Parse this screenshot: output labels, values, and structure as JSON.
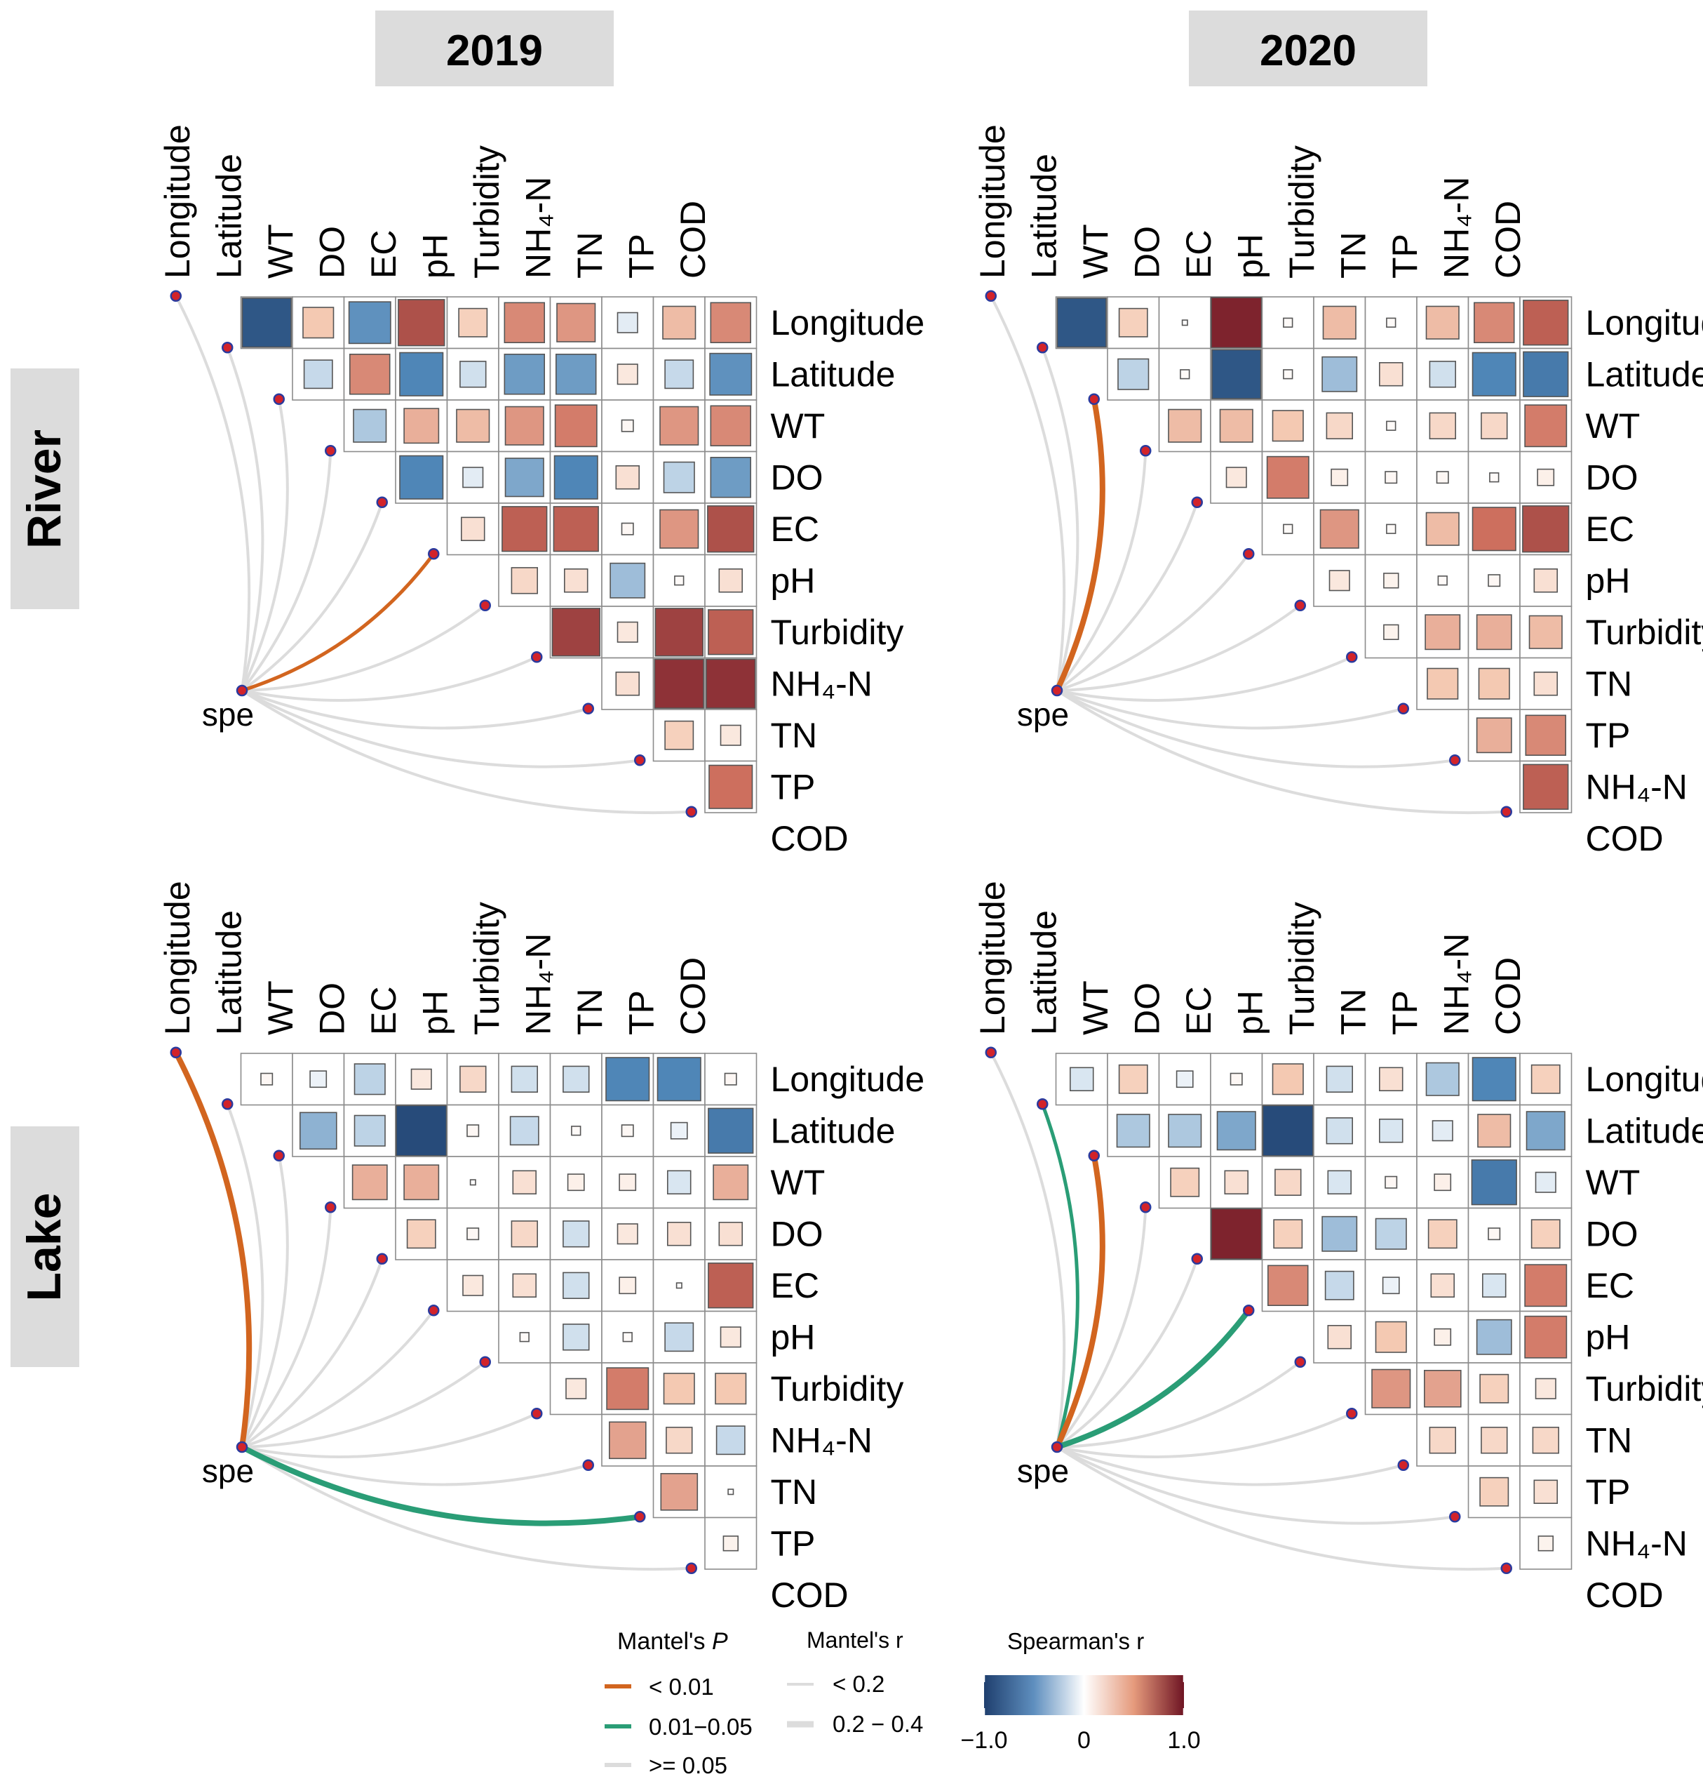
{
  "colors": {
    "neg": "#1f3f6e",
    "pos": "#6e1423",
    "mantel_p_lt001": "#d2651f",
    "mantel_p_001_005": "#2a9d76",
    "mantel_p_ge005": "#dcdcdc",
    "header_bg": "#dcdcdc"
  },
  "chart_data": [
    {
      "type": "heatmap",
      "panel": "River 2019",
      "year": "2019",
      "habitat": "River",
      "variables": [
        "Longitude",
        "Latitude",
        "WT",
        "DO",
        "EC",
        "pH",
        "Turbidity",
        "NH₄-N",
        "TN",
        "TP",
        "COD"
      ],
      "spe_label": "spe",
      "correlations": [
        [
          -0.9,
          0.35,
          -0.65,
          0.8,
          0.3,
          0.6,
          0.55,
          -0.15,
          0.4,
          0.6
        ],
        [
          -0.3,
          0.6,
          -0.7,
          -0.25,
          -0.6,
          -0.6,
          0.15,
          -0.3,
          -0.65
        ],
        [
          -0.4,
          0.45,
          0.4,
          0.55,
          0.65,
          0.05,
          0.55,
          0.6
        ],
        [
          -0.7,
          -0.15,
          -0.55,
          -0.7,
          0.2,
          -0.35,
          -0.6
        ],
        [
          0.2,
          0.75,
          0.75,
          0.05,
          0.55,
          0.8
        ],
        [
          0.25,
          0.2,
          -0.45,
          0.03,
          0.2
        ],
        [
          0.85,
          0.15,
          0.85,
          0.75
        ],
        [
          0.2,
          0.9,
          0.9
        ],
        [
          0.3,
          0.15
        ],
        [
          0.7
        ]
      ],
      "mantel": [
        {
          "var": "Longitude",
          "p": ">= 0.05",
          "r": "< 0.2"
        },
        {
          "var": "Latitude",
          "p": ">= 0.05",
          "r": "< 0.2"
        },
        {
          "var": "WT",
          "p": ">= 0.05",
          "r": "< 0.2"
        },
        {
          "var": "DO",
          "p": ">= 0.05",
          "r": "< 0.2"
        },
        {
          "var": "EC",
          "p": ">= 0.05",
          "r": "< 0.2"
        },
        {
          "var": "pH",
          "p": "< 0.01",
          "r": "< 0.2"
        },
        {
          "var": "Turbidity",
          "p": ">= 0.05",
          "r": "< 0.2"
        },
        {
          "var": "NH₄-N",
          "p": ">= 0.05",
          "r": "< 0.2"
        },
        {
          "var": "TN",
          "p": ">= 0.05",
          "r": "< 0.2"
        },
        {
          "var": "TP",
          "p": ">= 0.05",
          "r": "< 0.2"
        },
        {
          "var": "COD",
          "p": ">= 0.05",
          "r": "< 0.2"
        }
      ]
    },
    {
      "type": "heatmap",
      "panel": "River 2020",
      "year": "2020",
      "habitat": "River",
      "variables": [
        "Longitude",
        "Latitude",
        "WT",
        "DO",
        "EC",
        "pH",
        "Turbidity",
        "TN",
        "TP",
        "NH₄-N",
        "COD"
      ],
      "spe_label": "spe",
      "correlations": [
        [
          -0.9,
          0.3,
          0.01,
          0.95,
          0.03,
          0.4,
          0.03,
          0.4,
          0.6,
          0.75
        ],
        [
          -0.35,
          0.03,
          -0.9,
          0.03,
          -0.45,
          0.2,
          -0.25,
          -0.7,
          -0.75
        ],
        [
          0.4,
          0.4,
          0.35,
          0.25,
          0.03,
          0.25,
          0.25,
          0.65
        ],
        [
          0.15,
          0.65,
          0.1,
          0.05,
          0.05,
          0.03,
          0.1
        ],
        [
          0.03,
          0.55,
          0.03,
          0.4,
          0.7,
          0.8
        ],
        [
          0.15,
          0.08,
          0.03,
          0.05,
          0.2
        ],
        [
          0.08,
          0.45,
          0.45,
          0.4
        ],
        [
          0.35,
          0.35,
          0.2
        ],
        [
          0.45,
          0.6
        ],
        [
          0.75
        ]
      ],
      "mantel": [
        {
          "var": "Longitude",
          "p": ">= 0.05",
          "r": "< 0.2"
        },
        {
          "var": "Latitude",
          "p": ">= 0.05",
          "r": "< 0.2"
        },
        {
          "var": "WT",
          "p": "< 0.01",
          "r": "0.2 - 0.4"
        },
        {
          "var": "DO",
          "p": ">= 0.05",
          "r": "< 0.2"
        },
        {
          "var": "EC",
          "p": ">= 0.05",
          "r": "< 0.2"
        },
        {
          "var": "pH",
          "p": ">= 0.05",
          "r": "< 0.2"
        },
        {
          "var": "Turbidity",
          "p": ">= 0.05",
          "r": "< 0.2"
        },
        {
          "var": "TN",
          "p": ">= 0.05",
          "r": "< 0.2"
        },
        {
          "var": "TP",
          "p": ">= 0.05",
          "r": "< 0.2"
        },
        {
          "var": "NH₄-N",
          "p": ">= 0.05",
          "r": "< 0.2"
        },
        {
          "var": "COD",
          "p": ">= 0.05",
          "r": "< 0.2"
        }
      ]
    },
    {
      "type": "heatmap",
      "panel": "Lake 2019",
      "year": "2019",
      "habitat": "Lake",
      "variables": [
        "Longitude",
        "Latitude",
        "WT",
        "DO",
        "EC",
        "pH",
        "Turbidity",
        "NH₄-N",
        "TN",
        "TP",
        "COD"
      ],
      "spe_label": "spe",
      "correlations": [
        [
          0.05,
          -0.1,
          -0.35,
          0.15,
          0.25,
          -0.25,
          -0.25,
          -0.7,
          -0.7,
          0.05
        ],
        [
          -0.5,
          -0.35,
          -0.95,
          0.05,
          -0.3,
          0.03,
          0.05,
          -0.1,
          -0.75
        ],
        [
          0.45,
          0.45,
          0.01,
          0.2,
          0.1,
          0.1,
          -0.2,
          0.45
        ],
        [
          0.3,
          0.05,
          0.25,
          -0.25,
          0.15,
          0.2,
          0.2
        ],
        [
          0.15,
          0.2,
          -0.25,
          0.1,
          0.01,
          0.75
        ],
        [
          0.03,
          -0.25,
          0.03,
          -0.3,
          0.15
        ],
        [
          0.15,
          0.65,
          0.35,
          0.35
        ],
        [
          0.5,
          0.25,
          -0.3
        ],
        [
          0.5,
          0.01
        ],
        [
          0.08
        ]
      ],
      "mantel": [
        {
          "var": "Longitude",
          "p": "< 0.01",
          "r": "0.2 - 0.4"
        },
        {
          "var": "Latitude",
          "p": ">= 0.05",
          "r": "< 0.2"
        },
        {
          "var": "WT",
          "p": ">= 0.05",
          "r": "< 0.2"
        },
        {
          "var": "DO",
          "p": ">= 0.05",
          "r": "< 0.2"
        },
        {
          "var": "EC",
          "p": ">= 0.05",
          "r": "< 0.2"
        },
        {
          "var": "pH",
          "p": ">= 0.05",
          "r": "< 0.2"
        },
        {
          "var": "Turbidity",
          "p": ">= 0.05",
          "r": "< 0.2"
        },
        {
          "var": "NH₄-N",
          "p": ">= 0.05",
          "r": "< 0.2"
        },
        {
          "var": "TN",
          "p": ">= 0.05",
          "r": "< 0.2"
        },
        {
          "var": "TP",
          "p": "0.01-0.05",
          "r": "0.2 - 0.4"
        },
        {
          "var": "COD",
          "p": ">= 0.05",
          "r": "< 0.2"
        }
      ]
    },
    {
      "type": "heatmap",
      "panel": "Lake 2020",
      "year": "2020",
      "habitat": "Lake",
      "variables": [
        "Longitude",
        "Latitude",
        "WT",
        "DO",
        "EC",
        "pH",
        "Turbidity",
        "TN",
        "TP",
        "NH₄-N",
        "COD"
      ],
      "spe_label": "spe",
      "correlations": [
        [
          -0.2,
          0.3,
          -0.1,
          0.05,
          0.35,
          -0.25,
          0.2,
          -0.4,
          -0.7,
          0.3
        ],
        [
          -0.4,
          -0.4,
          -0.55,
          -0.95,
          -0.25,
          -0.2,
          -0.15,
          0.4,
          -0.55
        ],
        [
          0.3,
          0.2,
          0.25,
          -0.2,
          0.05,
          0.1,
          -0.75,
          -0.15
        ],
        [
          0.95,
          0.3,
          -0.45,
          -0.35,
          0.3,
          0.05,
          0.3
        ],
        [
          0.6,
          -0.3,
          -0.1,
          0.2,
          -0.2,
          0.65
        ],
        [
          0.2,
          0.35,
          0.1,
          -0.45,
          0.65
        ],
        [
          0.55,
          0.5,
          0.3,
          0.15
        ],
        [
          0.25,
          0.25,
          0.25
        ],
        [
          0.3,
          0.2
        ],
        [
          0.08
        ]
      ],
      "mantel": [
        {
          "var": "Longitude",
          "p": ">= 0.05",
          "r": "< 0.2"
        },
        {
          "var": "Latitude",
          "p": "0.01-0.05",
          "r": "< 0.2"
        },
        {
          "var": "WT",
          "p": "< 0.01",
          "r": "0.2 - 0.4"
        },
        {
          "var": "DO",
          "p": ">= 0.05",
          "r": "< 0.2"
        },
        {
          "var": "EC",
          "p": ">= 0.05",
          "r": "< 0.2"
        },
        {
          "var": "pH",
          "p": "0.01-0.05",
          "r": "0.2 - 0.4"
        },
        {
          "var": "Turbidity",
          "p": ">= 0.05",
          "r": "< 0.2"
        },
        {
          "var": "TN",
          "p": ">= 0.05",
          "r": "< 0.2"
        },
        {
          "var": "TP",
          "p": ">= 0.05",
          "r": "< 0.2"
        },
        {
          "var": "NH₄-N",
          "p": ">= 0.05",
          "r": "< 0.2"
        },
        {
          "var": "COD",
          "p": ">= 0.05",
          "r": "< 0.2"
        }
      ]
    }
  ],
  "headers": {
    "year_2019": "2019",
    "year_2020": "2020",
    "row_river": "River",
    "row_lake": "Lake"
  },
  "legend": {
    "mantel_p_title_prefix": "Mantel's ",
    "mantel_p_title_italic": "P",
    "mantel_p_items": [
      "< 0.01",
      "0.01−0.05",
      ">= 0.05"
    ],
    "mantel_r_title": "Mantel's r",
    "mantel_r_items": [
      "< 0.2",
      "0.2 − 0.4"
    ],
    "spearman_title": "Spearman's r",
    "spearman_ticks": [
      "−1.0",
      "0",
      "1.0"
    ],
    "spearman_tick_values": [
      -1,
      0,
      1
    ]
  }
}
